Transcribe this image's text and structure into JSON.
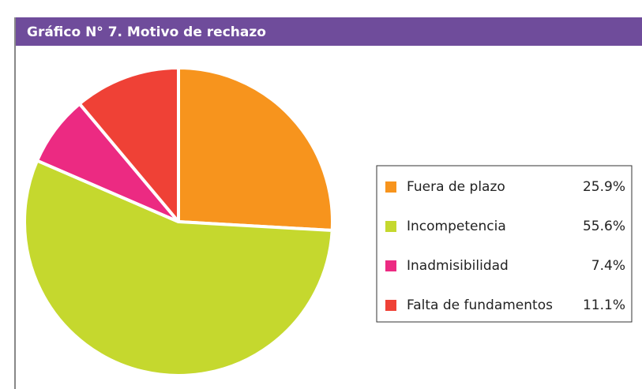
{
  "chart_data": {
    "type": "pie",
    "title": "Gráfico N° 7. Motivo de rechazo",
    "categories": [
      "Fuera de plazo",
      "Incompetencia",
      "Inadmisibilidad",
      "Falta de fundamentos"
    ],
    "values": [
      25.9,
      55.6,
      7.4,
      11.1
    ],
    "value_labels": [
      "25.9%",
      "55.6%",
      "7.4%",
      "11.1%"
    ],
    "colors": [
      "#f7941d",
      "#c5d82e",
      "#ec2a82",
      "#ef4136"
    ],
    "legend": "right"
  }
}
